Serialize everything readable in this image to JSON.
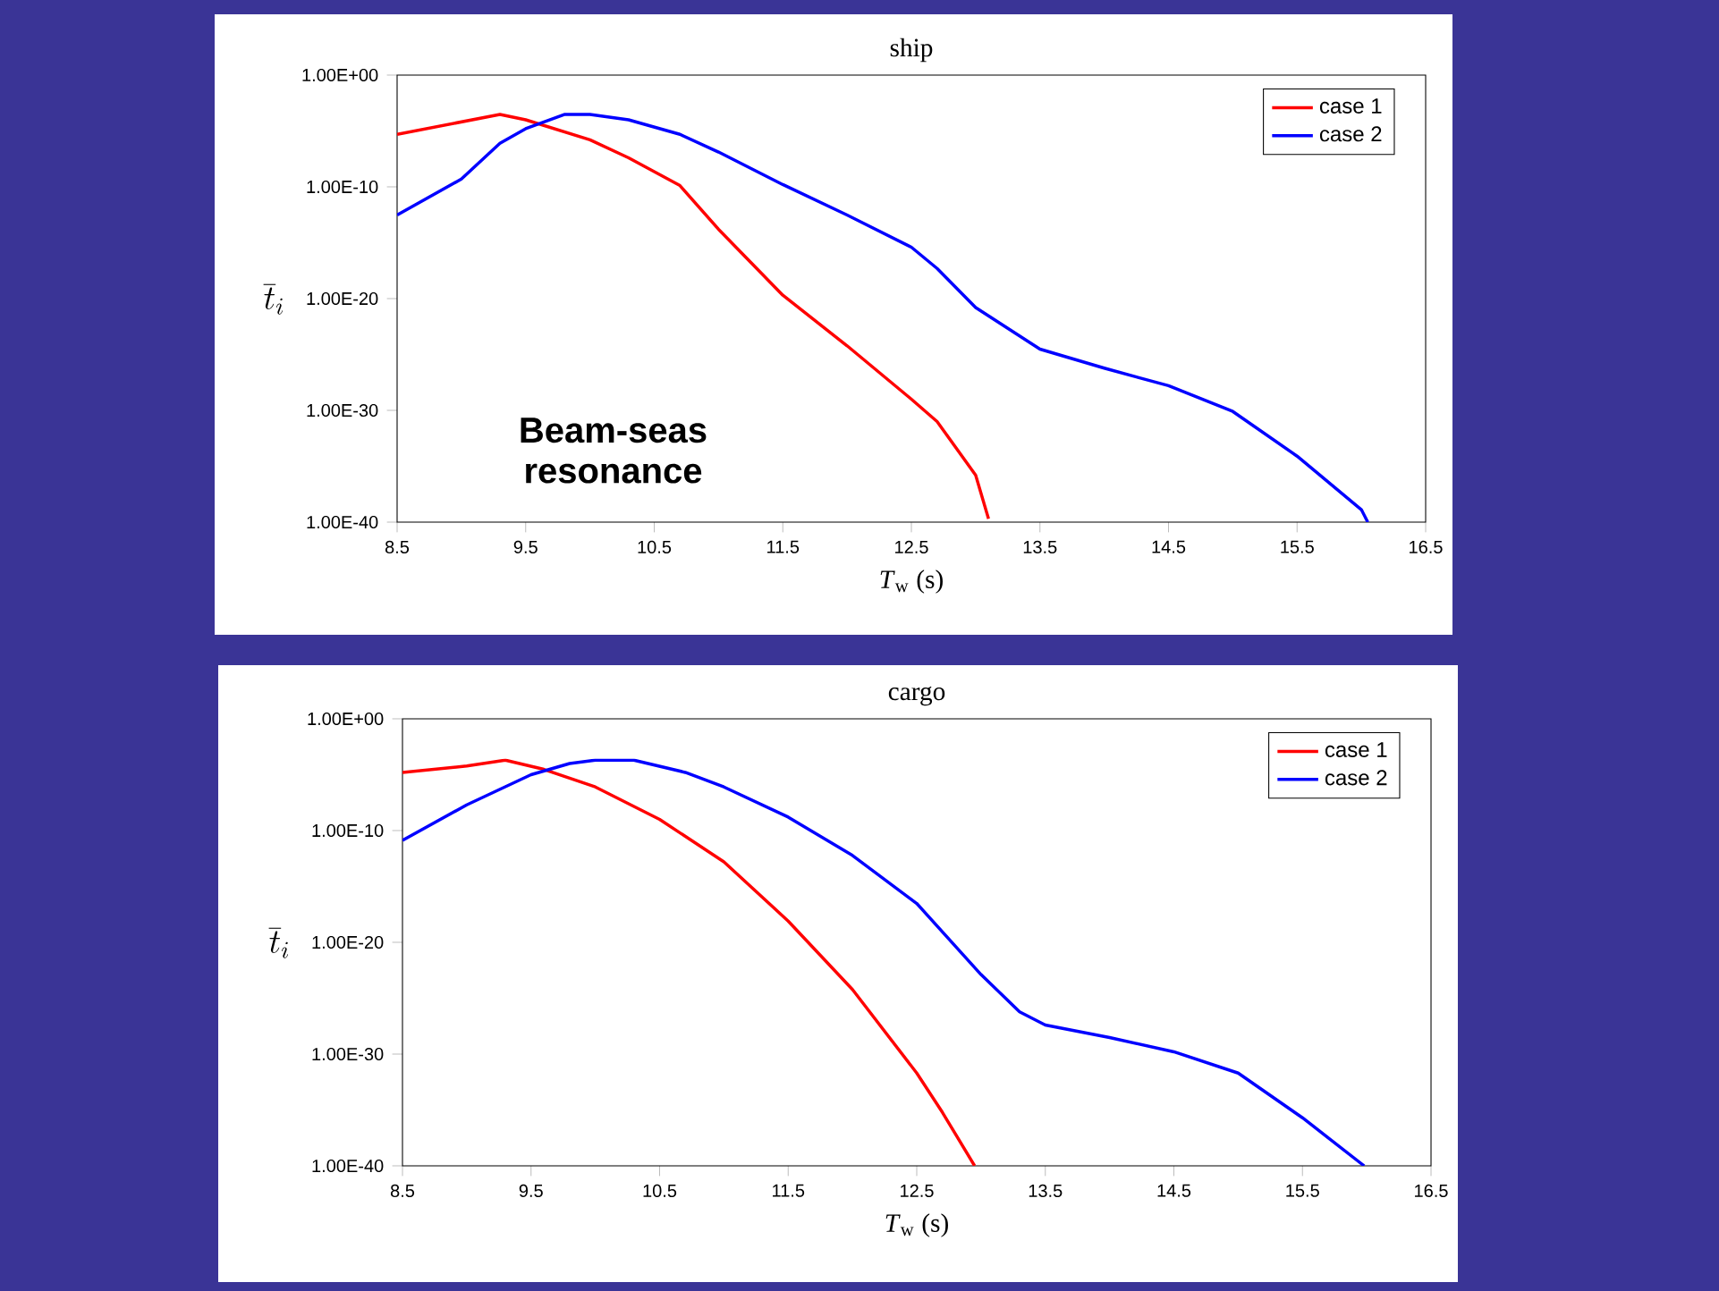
{
  "chart_data": [
    {
      "type": "line",
      "title": "ship",
      "xlabel": "*T*$_{w}$ (s)",
      "ylabel": "\\overline{t}_i",
      "log": "y",
      "legend": "top right",
      "marker": "none",
      "line_style": "solid",
      "xlim": [
        8.5,
        16.5
      ],
      "xticks": [
        8.5,
        9.5,
        10.5,
        11.5,
        12.5,
        13.5,
        14.5,
        15.5,
        16.5
      ],
      "ylim": [
        1e-40,
        1
      ],
      "yticks": [
        {
          "value": 1e-40,
          "label": "1.00E-40"
        },
        {
          "value": 1e-30,
          "label": "1.00E-30"
        },
        {
          "value": 1e-20,
          "label": "1.00E-20"
        },
        {
          "value": 1e-10,
          "label": "1.00E-10"
        },
        {
          "value": 1,
          "label": "1.00E+00"
        }
      ],
      "annotations": [
        "Beam-seas resonance"
      ],
      "series": [
        {
          "name": "case 1",
          "color": "#ff0000",
          "x": [
            8.5,
            9.3,
            9.5,
            10.0,
            10.3,
            10.7,
            11.0,
            11.5,
            12.0,
            12.5,
            12.7,
            13.0,
            13.1
          ],
          "values": [
            5e-06,
            0.0003,
            0.0001,
            1.6e-06,
            4e-08,
            1.3e-10,
            1.6e-14,
            2e-20,
            6e-25,
            1e-29,
            1e-31,
            1.6e-36,
            2e-40
          ]
        },
        {
          "name": "case 2",
          "color": "#0000ff",
          "x": [
            8.5,
            9.0,
            9.3,
            9.5,
            9.8,
            10.0,
            10.3,
            10.7,
            11.0,
            11.5,
            12.0,
            12.5,
            12.7,
            13.0,
            13.5,
            14.0,
            14.5,
            15.0,
            15.5,
            16.0,
            16.05
          ],
          "values": [
            3e-13,
            5e-10,
            8e-07,
            1.6e-05,
            0.0003,
            0.0003,
            0.0001,
            5e-06,
            1.3e-07,
            1.6e-10,
            3e-13,
            4e-16,
            5e-18,
            1.6e-21,
            3e-25,
            6e-27,
            1.6e-28,
            8e-31,
            8e-35,
            1.3e-39,
            1e-40
          ]
        }
      ]
    },
    {
      "type": "line",
      "title": "cargo",
      "xlabel": "*T*$_{w}$ (s)",
      "ylabel": "\\overline{t}_i",
      "log": "y",
      "legend": "top right",
      "marker": "none",
      "line_style": "solid",
      "xlim": [
        8.5,
        16.5
      ],
      "xticks": [
        8.5,
        9.5,
        10.5,
        11.5,
        12.5,
        13.5,
        14.5,
        15.5,
        16.5
      ],
      "ylim": [
        1e-40,
        1
      ],
      "yticks": [
        {
          "value": 1e-40,
          "label": "1.00E-40"
        },
        {
          "value": 1e-30,
          "label": "1.00E-30"
        },
        {
          "value": 1e-20,
          "label": "1.00E-20"
        },
        {
          "value": 1e-10,
          "label": "1.00E-10"
        },
        {
          "value": 1,
          "label": "1.00E+00"
        }
      ],
      "series": [
        {
          "name": "case 1",
          "color": "#ff0000",
          "x": [
            8.5,
            9.0,
            9.3,
            9.6,
            10.0,
            10.5,
            11.0,
            11.5,
            12.0,
            12.5,
            12.7,
            12.95
          ],
          "values": [
            1.6e-05,
            6e-05,
            0.0002,
            3e-05,
            8e-07,
            1e-09,
            1.6e-13,
            8e-19,
            6e-25,
            2e-32,
            6e-36,
            1e-40
          ]
        },
        {
          "name": "case 2",
          "color": "#0000ff",
          "x": [
            8.5,
            9.0,
            9.5,
            9.8,
            10.0,
            10.3,
            10.7,
            11.0,
            11.5,
            12.0,
            12.5,
            13.0,
            13.3,
            13.5,
            14.0,
            14.5,
            15.0,
            15.5,
            15.98
          ],
          "values": [
            1.3e-11,
            2e-08,
            1e-05,
            0.0001,
            0.0002,
            0.0002,
            1.6e-05,
            8e-07,
            1.6e-09,
            6e-13,
            3e-17,
            1.3e-23,
            6e-27,
            4e-28,
            3e-29,
            1.6e-30,
            2e-32,
            2e-36,
            1e-40
          ]
        }
      ]
    }
  ]
}
